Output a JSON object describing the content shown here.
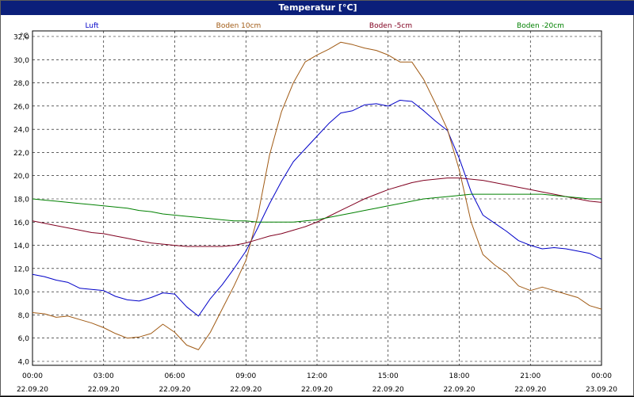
{
  "window": {
    "title": "Temperatur [°C]"
  },
  "chart_data": {
    "type": "line",
    "title": "Temperatur [°C]",
    "unit": "°C",
    "ylim": [
      4,
      33
    ],
    "yticks": [
      "32,0",
      "30,0",
      "28,0",
      "26,0",
      "24,0",
      "22,0",
      "20,0",
      "18,0",
      "16,0",
      "14,0",
      "12,0",
      "10,0",
      "8,0",
      "6,0",
      "4,0"
    ],
    "xticks": [
      {
        "time": "00:00",
        "date": "22.09.20"
      },
      {
        "time": "03:00",
        "date": "22.09.20"
      },
      {
        "time": "06:00",
        "date": "22.09.20"
      },
      {
        "time": "09:00",
        "date": "22.09.20"
      },
      {
        "time": "12:00",
        "date": "22.09.20"
      },
      {
        "time": "15:00",
        "date": "22.09.20"
      },
      {
        "time": "18:00",
        "date": "22.09.20"
      },
      {
        "time": "21:00",
        "date": "22.09.20"
      },
      {
        "time": "00:00",
        "date": "23.09.20"
      }
    ],
    "grid": true,
    "legend_position": "top",
    "x_hours": [
      0,
      0.5,
      1,
      1.5,
      2,
      2.5,
      3,
      3.5,
      4,
      4.5,
      5,
      5.5,
      6,
      6.5,
      7,
      7.5,
      8,
      8.5,
      9,
      9.5,
      10,
      10.5,
      11,
      11.5,
      12,
      12.5,
      13,
      13.5,
      14,
      14.5,
      15,
      15.5,
      16,
      16.5,
      17,
      17.5,
      18,
      18.5,
      19,
      19.5,
      20,
      20.5,
      21,
      21.5,
      22,
      22.5,
      23,
      23.5,
      24
    ],
    "series": [
      {
        "name": "Luft",
        "color": "#0000c8",
        "values": [
          11.5,
          11.3,
          11.0,
          10.8,
          10.3,
          10.2,
          10.1,
          9.6,
          9.3,
          9.2,
          9.5,
          9.9,
          9.8,
          8.7,
          7.9,
          9.4,
          10.6,
          12.0,
          13.5,
          15.5,
          17.6,
          19.5,
          21.2,
          22.3,
          23.4,
          24.5,
          25.4,
          25.6,
          26.1,
          26.2,
          26.0,
          26.5,
          26.4,
          25.6,
          24.7,
          23.9,
          21.5,
          18.6,
          16.6,
          15.9,
          15.2,
          14.4,
          14.0,
          13.7,
          13.8,
          13.7,
          13.5,
          13.3,
          12.8
        ]
      },
      {
        "name": "Boden 10cm",
        "color": "#a05a14",
        "values": [
          8.2,
          8.1,
          7.8,
          7.9,
          7.6,
          7.3,
          6.9,
          6.4,
          6.0,
          6.1,
          6.4,
          7.2,
          6.5,
          5.4,
          5.0,
          6.5,
          8.5,
          10.5,
          12.7,
          16.5,
          21.8,
          25.5,
          28.0,
          29.8,
          30.4,
          30.9,
          31.5,
          31.3,
          31.0,
          30.8,
          30.4,
          29.8,
          29.8,
          28.3,
          26.2,
          24.0,
          20.5,
          16.0,
          13.2,
          12.3,
          11.6,
          10.5,
          10.1,
          10.4,
          10.1,
          9.8,
          9.5,
          8.8,
          8.5
        ]
      },
      {
        "name": "Boden -5cm",
        "color": "#800020",
        "values": [
          16.1,
          15.9,
          15.7,
          15.5,
          15.3,
          15.1,
          15.0,
          14.8,
          14.6,
          14.4,
          14.2,
          14.1,
          14.0,
          13.9,
          13.9,
          13.9,
          13.9,
          14.0,
          14.2,
          14.5,
          14.8,
          15.0,
          15.3,
          15.6,
          16.0,
          16.5,
          17.0,
          17.5,
          18.0,
          18.4,
          18.8,
          19.1,
          19.4,
          19.6,
          19.7,
          19.8,
          19.8,
          19.7,
          19.6,
          19.4,
          19.2,
          19.0,
          18.8,
          18.6,
          18.4,
          18.2,
          18.0,
          17.8,
          17.7
        ]
      },
      {
        "name": "Boden -20cm",
        "color": "#008000",
        "values": [
          18.0,
          17.9,
          17.8,
          17.7,
          17.6,
          17.5,
          17.4,
          17.3,
          17.2,
          17.0,
          16.9,
          16.7,
          16.6,
          16.5,
          16.4,
          16.3,
          16.2,
          16.1,
          16.1,
          16.0,
          16.0,
          16.0,
          16.0,
          16.1,
          16.2,
          16.4,
          16.6,
          16.8,
          17.0,
          17.2,
          17.4,
          17.6,
          17.8,
          18.0,
          18.1,
          18.2,
          18.3,
          18.4,
          18.4,
          18.4,
          18.4,
          18.4,
          18.4,
          18.4,
          18.3,
          18.2,
          18.1,
          18.0,
          18.0
        ]
      }
    ]
  }
}
